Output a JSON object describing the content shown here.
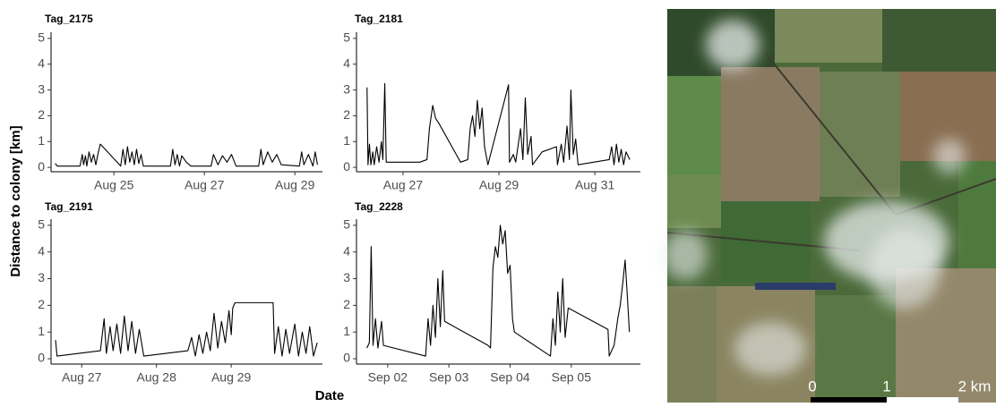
{
  "figure": {
    "ylabel": "Distance to colony [km]",
    "xlabel": "Date"
  },
  "map": {
    "scale_labels": [
      "0",
      "1",
      "2 km"
    ]
  },
  "chart_data": [
    {
      "type": "line",
      "title": "Tag_2175",
      "color": "#000000",
      "x": [
        23.7,
        23.75,
        24.25,
        24.3,
        24.33,
        24.37,
        24.4,
        24.45,
        24.5,
        24.55,
        24.6,
        24.65,
        24.7,
        25.15,
        25.2,
        25.25,
        25.3,
        25.35,
        25.4,
        25.45,
        25.5,
        25.55,
        25.6,
        25.65,
        26.25,
        26.3,
        26.35,
        26.4,
        26.45,
        26.5,
        26.6,
        26.7,
        27.15,
        27.2,
        27.3,
        27.4,
        27.5,
        27.6,
        27.7,
        28.2,
        28.25,
        28.3,
        28.4,
        28.5,
        28.6,
        28.7,
        29.1,
        29.15,
        29.2,
        29.3,
        29.4,
        29.45,
        29.5
      ],
      "values": [
        0.15,
        0.05,
        0.05,
        0.5,
        0.1,
        0.45,
        0.05,
        0.6,
        0.2,
        0.5,
        0.1,
        0.55,
        0.9,
        0.05,
        0.7,
        0.1,
        0.8,
        0.2,
        0.6,
        0.1,
        0.7,
        0.15,
        0.5,
        0.05,
        0.05,
        0.7,
        0.1,
        0.5,
        0.05,
        0.45,
        0.2,
        0.05,
        0.05,
        0.5,
        0.1,
        0.45,
        0.2,
        0.5,
        0.05,
        0.05,
        0.7,
        0.1,
        0.6,
        0.2,
        0.5,
        0.1,
        0.05,
        0.6,
        0.1,
        0.5,
        0.05,
        0.6,
        0.1
      ],
      "xlim": [
        23.61,
        29.61
      ],
      "xticks": [
        {
          "value": 25,
          "label": "Aug 25"
        },
        {
          "value": 27,
          "label": "Aug 27"
        },
        {
          "value": 29,
          "label": "Aug 29"
        }
      ],
      "ylim": [
        -0.17,
        5.24
      ],
      "yticks": [
        0,
        1,
        2,
        3,
        4,
        5
      ]
    },
    {
      "type": "line",
      "title": "Tag_2181",
      "color": "#000000",
      "x": [
        26.25,
        26.27,
        26.3,
        26.33,
        26.37,
        26.4,
        26.45,
        26.5,
        26.55,
        26.58,
        26.62,
        26.65,
        27.35,
        27.5,
        27.55,
        27.62,
        27.68,
        27.75,
        28.2,
        28.35,
        28.4,
        28.45,
        28.5,
        28.55,
        28.6,
        28.65,
        28.7,
        28.77,
        29.2,
        29.22,
        29.3,
        29.35,
        29.45,
        29.5,
        29.55,
        29.6,
        29.67,
        29.7,
        29.9,
        30.2,
        30.22,
        30.3,
        30.35,
        30.42,
        30.47,
        30.5,
        30.55,
        30.6,
        30.65,
        31.3,
        31.35,
        31.4,
        31.45,
        31.5,
        31.55,
        31.6,
        31.65,
        31.73
      ],
      "values": [
        3.1,
        0.1,
        0.9,
        0.1,
        0.6,
        0.1,
        0.8,
        0.2,
        1.0,
        0.3,
        3.25,
        0.2,
        0.2,
        0.3,
        1.5,
        2.4,
        1.9,
        1.7,
        0.2,
        0.3,
        1.5,
        2.0,
        1.2,
        2.6,
        1.5,
        2.3,
        0.8,
        0.1,
        3.2,
        0.2,
        0.5,
        0.2,
        1.5,
        0.3,
        2.7,
        0.5,
        1.2,
        0.1,
        0.6,
        0.8,
        0.1,
        0.9,
        0.2,
        1.6,
        0.3,
        3.0,
        0.5,
        1.1,
        0.1,
        0.3,
        0.8,
        0.1,
        0.9,
        0.2,
        0.7,
        0.1,
        0.6,
        0.3
      ],
      "xlim": [
        26.03,
        31.95
      ],
      "xticks": [
        {
          "value": 27,
          "label": "Aug 27"
        },
        {
          "value": 29,
          "label": "Aug 29"
        },
        {
          "value": 31,
          "label": "Aug 31"
        }
      ],
      "ylim": [
        -0.17,
        5.24
      ],
      "yticks": [
        0,
        1,
        2,
        3,
        4,
        5
      ]
    },
    {
      "type": "line",
      "title": "Tag_2191",
      "color": "#000000",
      "x": [
        26.65,
        26.67,
        27.25,
        27.3,
        27.33,
        27.38,
        27.42,
        27.47,
        27.52,
        27.57,
        27.62,
        27.67,
        27.72,
        27.77,
        27.83,
        28.42,
        28.47,
        28.52,
        28.57,
        28.62,
        28.67,
        28.72,
        28.77,
        28.82,
        28.87,
        28.92,
        28.97,
        29.0,
        29.02,
        29.05,
        29.56,
        29.58,
        29.63,
        29.68,
        29.73,
        29.78,
        29.85,
        29.9,
        29.95,
        30.0,
        30.05,
        30.1,
        30.15
      ],
      "values": [
        0.7,
        0.1,
        0.3,
        1.5,
        0.2,
        1.2,
        0.3,
        1.3,
        0.2,
        1.6,
        0.3,
        1.4,
        0.2,
        1.1,
        0.1,
        0.3,
        0.8,
        0.1,
        0.9,
        0.2,
        1.0,
        0.3,
        1.7,
        0.4,
        1.4,
        0.6,
        1.8,
        0.9,
        1.9,
        2.1,
        2.1,
        0.2,
        1.2,
        0.1,
        1.1,
        0.2,
        1.3,
        0.1,
        1.0,
        0.2,
        1.2,
        0.1,
        0.6
      ],
      "xlim": [
        26.59,
        30.22
      ],
      "xticks": [
        {
          "value": 27,
          "label": "Aug 27"
        },
        {
          "value": 28,
          "label": "Aug 28"
        },
        {
          "value": 29,
          "label": "Aug 29"
        }
      ],
      "ylim": [
        -0.2,
        5.23
      ],
      "yticks": [
        0,
        1,
        2,
        3,
        4,
        5
      ]
    },
    {
      "type": "line",
      "title": "Tag_2228",
      "color": "#000000",
      "x": [
        1.66,
        1.7,
        1.73,
        1.76,
        1.8,
        1.84,
        1.9,
        1.93,
        2.62,
        2.66,
        2.7,
        2.74,
        2.78,
        2.82,
        2.86,
        2.9,
        2.93,
        3.64,
        3.68,
        3.72,
        3.76,
        3.8,
        3.84,
        3.88,
        3.92,
        3.96,
        4.0,
        4.04,
        4.07,
        4.66,
        4.7,
        4.74,
        4.78,
        4.82,
        4.86,
        4.9,
        4.95,
        5.6,
        5.62,
        5.7,
        5.76,
        5.8,
        5.84,
        5.88,
        5.92,
        5.95
      ],
      "values": [
        0.4,
        0.6,
        4.2,
        0.5,
        1.5,
        0.4,
        1.4,
        0.5,
        0.1,
        1.5,
        0.5,
        2.0,
        0.8,
        3.0,
        1.2,
        3.3,
        1.4,
        0.5,
        0.4,
        3.4,
        4.2,
        3.8,
        5.0,
        4.3,
        4.8,
        3.2,
        3.5,
        1.5,
        1.0,
        0.1,
        1.5,
        0.5,
        2.5,
        1.0,
        3.0,
        0.8,
        1.9,
        1.1,
        0.1,
        0.5,
        1.5,
        2.0,
        2.8,
        3.7,
        2.2,
        1.0
      ],
      "xlim": [
        1.49,
        6.13
      ],
      "xticks": [
        {
          "value": 2,
          "label": "Sep 02"
        },
        {
          "value": 3,
          "label": "Sep 03"
        },
        {
          "value": 4,
          "label": "Sep 04"
        },
        {
          "value": 5,
          "label": "Sep 05"
        }
      ],
      "ylim": [
        -0.2,
        5.23
      ],
      "yticks": [
        0,
        1,
        2,
        3,
        4,
        5
      ]
    }
  ]
}
